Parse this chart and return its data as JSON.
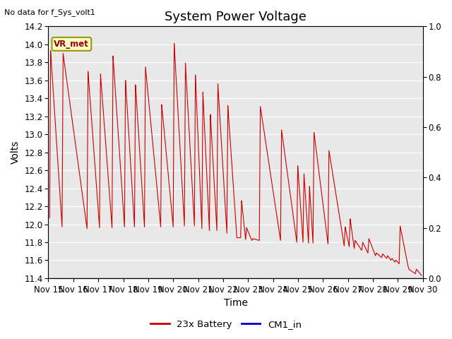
{
  "title": "System Power Voltage",
  "no_data_label": "No data for f_Sys_volt1",
  "xlabel": "Time",
  "ylabel": "Volts",
  "ylim_left": [
    11.4,
    14.2
  ],
  "ylim_right": [
    0.0,
    1.0
  ],
  "yticks_left": [
    11.4,
    11.6,
    11.8,
    12.0,
    12.2,
    12.4,
    12.6,
    12.8,
    13.0,
    13.2,
    13.4,
    13.6,
    13.8,
    14.0,
    14.2
  ],
  "yticks_right": [
    0.0,
    0.2,
    0.4,
    0.6,
    0.8,
    1.0
  ],
  "xtick_labels": [
    "Nov 15",
    "Nov 16",
    "Nov 17",
    "Nov 18",
    "Nov 19",
    "Nov 20",
    "Nov 21",
    "Nov 22",
    "Nov 23",
    "Nov 24",
    "Nov 25",
    "Nov 26",
    "Nov 27",
    "Nov 28",
    "Nov 29",
    "Nov 30"
  ],
  "background_color": "#e8e8e8",
  "line_color_battery": "#cc0000",
  "line_color_cm1": "#0000cc",
  "legend_battery": "23x Battery",
  "legend_cm1": "CM1_in",
  "vr_met_label": "VR_met",
  "vr_met_bg": "#ffffcc",
  "vr_met_border": "#999900",
  "title_fontsize": 13,
  "label_fontsize": 10,
  "tick_fontsize": 8.5,
  "no_data_fontsize": 8,
  "cycles": [
    [
      0.05,
      12.07,
      13.93,
      0.55,
      11.97
    ],
    [
      0.55,
      11.97,
      13.9,
      1.55,
      11.95
    ],
    [
      1.55,
      11.95,
      13.7,
      2.05,
      11.96
    ],
    [
      2.05,
      11.96,
      13.67,
      2.55,
      11.96
    ],
    [
      2.55,
      11.96,
      13.87,
      3.05,
      11.97
    ],
    [
      3.05,
      11.97,
      13.6,
      3.45,
      11.97
    ],
    [
      3.45,
      11.97,
      13.55,
      3.85,
      11.97
    ],
    [
      3.85,
      11.97,
      13.75,
      4.5,
      11.97
    ],
    [
      4.5,
      11.97,
      13.33,
      5.0,
      11.97
    ],
    [
      5.0,
      11.97,
      14.01,
      5.45,
      11.98
    ],
    [
      5.45,
      11.98,
      13.79,
      5.85,
      11.98
    ],
    [
      5.85,
      11.98,
      13.66,
      6.15,
      11.95
    ],
    [
      6.15,
      11.95,
      13.47,
      6.45,
      11.93
    ],
    [
      6.45,
      11.93,
      13.22,
      6.75,
      11.93
    ],
    [
      6.75,
      11.93,
      13.56,
      7.15,
      11.9
    ],
    [
      7.15,
      11.9,
      13.32,
      7.55,
      11.85
    ],
    [
      7.7,
      11.85,
      12.26,
      7.9,
      11.83
    ],
    [
      7.9,
      11.83,
      11.96,
      8.15,
      11.82
    ],
    [
      8.15,
      11.82,
      11.84,
      8.45,
      11.82
    ],
    [
      8.45,
      11.82,
      13.31,
      9.3,
      11.82
    ],
    [
      9.3,
      11.82,
      13.05,
      9.95,
      11.8
    ],
    [
      9.95,
      11.8,
      12.65,
      10.2,
      11.8
    ],
    [
      10.2,
      11.8,
      12.56,
      10.42,
      11.79
    ],
    [
      10.42,
      11.79,
      12.42,
      10.6,
      11.79
    ],
    [
      10.6,
      11.79,
      13.02,
      11.2,
      11.78
    ],
    [
      11.2,
      11.78,
      12.82,
      11.85,
      11.76
    ],
    [
      11.85,
      11.76,
      11.97,
      12.05,
      11.75
    ],
    [
      12.05,
      11.75,
      12.06,
      12.25,
      11.73
    ],
    [
      12.25,
      11.73,
      11.82,
      12.55,
      11.71
    ],
    [
      12.55,
      11.71,
      11.8,
      12.8,
      11.68
    ],
    [
      12.8,
      11.68,
      11.84,
      13.1,
      11.65
    ],
    [
      13.1,
      11.65,
      11.68,
      13.35,
      11.63
    ],
    [
      13.35,
      11.63,
      11.67,
      13.55,
      11.62
    ],
    [
      13.55,
      11.62,
      11.65,
      13.72,
      11.6
    ],
    [
      13.72,
      11.6,
      11.62,
      13.88,
      11.58
    ],
    [
      13.88,
      11.58,
      11.6,
      14.05,
      11.56
    ],
    [
      14.05,
      11.56,
      11.98,
      14.4,
      11.54
    ],
    [
      14.4,
      11.54,
      11.5,
      14.7,
      11.45
    ],
    [
      14.7,
      11.45,
      11.5,
      14.95,
      11.43
    ]
  ]
}
